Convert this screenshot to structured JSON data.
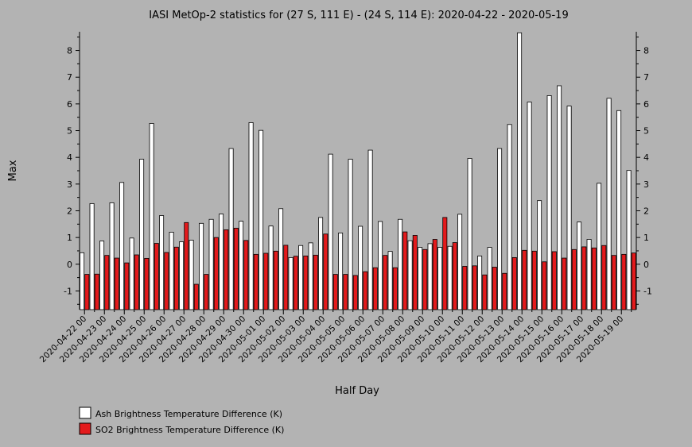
{
  "chart_data": {
    "type": "bar",
    "title": "IASI MetOp-2 statistics for (27 S, 111 E) - (24 S, 114 E): 2020-04-22 - 2020-05-19",
    "xlabel": "Half Day",
    "ylabel": "Max",
    "ylim": [
      -1.7,
      8.7
    ],
    "yticks": [
      "-1",
      "0",
      "1",
      "2",
      "3",
      "4",
      "5",
      "6",
      "7",
      "8"
    ],
    "grid": false,
    "legend_position": "bottom-left",
    "categories": [
      "2020-04-22 00",
      "2020-04-22 12",
      "2020-04-23 00",
      "2020-04-23 12",
      "2020-04-24 00",
      "2020-04-24 12",
      "2020-04-25 00",
      "2020-04-25 12",
      "2020-04-26 00",
      "2020-04-26 12",
      "2020-04-27 00",
      "2020-04-27 12",
      "2020-04-28 00",
      "2020-04-28 12",
      "2020-04-29 00",
      "2020-04-29 12",
      "2020-04-30 00",
      "2020-04-30 12",
      "2020-05-01 00",
      "2020-05-01 12",
      "2020-05-02 00",
      "2020-05-02 12",
      "2020-05-03 00",
      "2020-05-03 12",
      "2020-05-04 00",
      "2020-05-04 12",
      "2020-05-05 00",
      "2020-05-05 12",
      "2020-05-06 00",
      "2020-05-06 12",
      "2020-05-07 00",
      "2020-05-07 12",
      "2020-05-08 00",
      "2020-05-08 12",
      "2020-05-09 00",
      "2020-05-09 12",
      "2020-05-10 00",
      "2020-05-10 12",
      "2020-05-11 00",
      "2020-05-11 12",
      "2020-05-12 00",
      "2020-05-12 12",
      "2020-05-13 00",
      "2020-05-13 12",
      "2020-05-14 00",
      "2020-05-14 12",
      "2020-05-15 00",
      "2020-05-15 12",
      "2020-05-16 00",
      "2020-05-16 12",
      "2020-05-17 00",
      "2020-05-17 12",
      "2020-05-18 00",
      "2020-05-18 12",
      "2020-05-19 00",
      "2020-05-19 12"
    ],
    "xtick_labels": [
      "2020-04-22 00",
      "2020-04-23 00",
      "2020-04-24 00",
      "2020-04-25 00",
      "2020-04-26 00",
      "2020-04-27 00",
      "2020-04-28 00",
      "2020-04-29 00",
      "2020-04-30 00",
      "2020-05-01 00",
      "2020-05-02 00",
      "2020-05-03 00",
      "2020-05-04 00",
      "2020-05-05 00",
      "2020-05-06 00",
      "2020-05-07 00",
      "2020-05-08 00",
      "2020-05-09 00",
      "2020-05-10 00",
      "2020-05-11 00",
      "2020-05-12 00",
      "2020-05-13 00",
      "2020-05-14 00",
      "2020-05-15 00",
      "2020-05-16 00",
      "2020-05-17 00",
      "2020-05-18 00",
      "2020-05-19 00"
    ],
    "series": [
      {
        "name": "Ash Brightness Temperature Difference (K)",
        "color": "#ffffff",
        "values": [
          0.43,
          2.27,
          0.87,
          2.3,
          3.06,
          0.98,
          3.93,
          5.27,
          1.82,
          1.2,
          0.84,
          0.9,
          1.53,
          1.68,
          1.88,
          4.33,
          1.61,
          5.3,
          5.01,
          1.43,
          2.08,
          0.25,
          0.7,
          0.8,
          1.75,
          4.12,
          1.17,
          3.93,
          1.42,
          4.27,
          1.6,
          0.48,
          1.68,
          0.88,
          0.63,
          0.77,
          0.63,
          0.67,
          1.87,
          3.96,
          0.31,
          0.63,
          4.33,
          5.23,
          8.66,
          6.07,
          2.38,
          6.31,
          6.68,
          5.92,
          1.58,
          0.93,
          3.03,
          6.21,
          5.75,
          3.51
        ]
      },
      {
        "name": "SO2 Brightness Temperature Difference (K)",
        "color": "#e31a1c",
        "values": [
          -0.38,
          -0.37,
          0.33,
          0.23,
          0.05,
          0.35,
          0.22,
          0.78,
          0.44,
          0.64,
          1.56,
          -0.75,
          -0.38,
          1.0,
          1.29,
          1.35,
          0.89,
          0.37,
          0.41,
          0.49,
          0.71,
          0.3,
          0.31,
          0.34,
          1.13,
          -0.38,
          -0.38,
          -0.42,
          -0.28,
          -0.13,
          0.33,
          -0.13,
          1.21,
          1.08,
          0.55,
          0.93,
          1.75,
          0.81,
          -0.08,
          -0.06,
          -0.4,
          -0.11,
          -0.34,
          0.25,
          0.52,
          0.49,
          0.09,
          0.47,
          0.23,
          0.55,
          0.65,
          0.61,
          0.7,
          0.33,
          0.37,
          0.42
        ]
      }
    ]
  }
}
